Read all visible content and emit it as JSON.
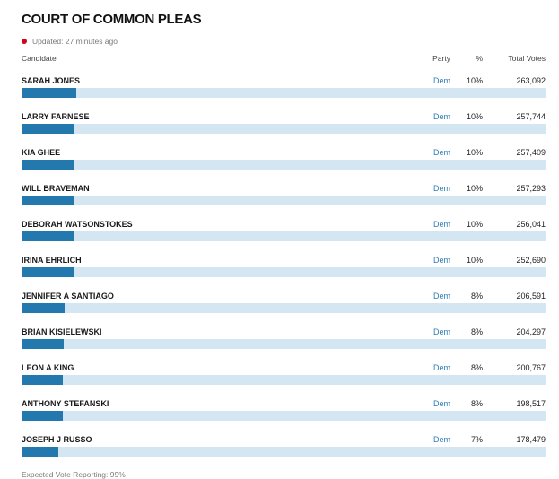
{
  "header": {
    "title": "COURT OF COMMON PLEAS",
    "updated": "Updated: 27 minutes ago"
  },
  "columns": {
    "candidate": "Candidate",
    "party": "Party",
    "percent": "%",
    "total_votes": "Total Votes"
  },
  "footer": {
    "expected_vote": "Expected Vote Reporting: 99%"
  },
  "colors": {
    "bar_fill": "#2379ae",
    "bar_track": "#d4e6f2",
    "party_dem_text": "#2d7cb5",
    "live_dot_red": "#d0021b"
  },
  "chart_data": {
    "type": "bar",
    "orientation": "horizontal",
    "title": "COURT OF COMMON PLEAS",
    "categories": [
      "SARAH JONES",
      "LARRY FARNESE",
      "KIA GHEE",
      "WILL BRAVEMAN",
      "DEBORAH WATSONSTOKES",
      "IRINA EHRLICH",
      "JENNIFER A SANTIAGO",
      "BRIAN KISIELEWSKI",
      "LEON A KING",
      "ANTHONY STEFANSKI",
      "JOSEPH J RUSSO"
    ],
    "party": [
      "Dem",
      "Dem",
      "Dem",
      "Dem",
      "Dem",
      "Dem",
      "Dem",
      "Dem",
      "Dem",
      "Dem",
      "Dem"
    ],
    "percent_labels": [
      "10%",
      "10%",
      "10%",
      "10%",
      "10%",
      "10%",
      "8%",
      "8%",
      "8%",
      "8%",
      "7%"
    ],
    "values": [
      263092,
      257744,
      257409,
      257293,
      256041,
      252690,
      206591,
      204297,
      200767,
      198517,
      178479
    ],
    "value_labels": [
      "263,092",
      "257,744",
      "257,409",
      "257,293",
      "256,041",
      "252,690",
      "206,591",
      "204,297",
      "200,767",
      "198,517",
      "178,479"
    ],
    "xlim": [
      0,
      100
    ],
    "bar_scale": "percent_of_total_votes"
  }
}
